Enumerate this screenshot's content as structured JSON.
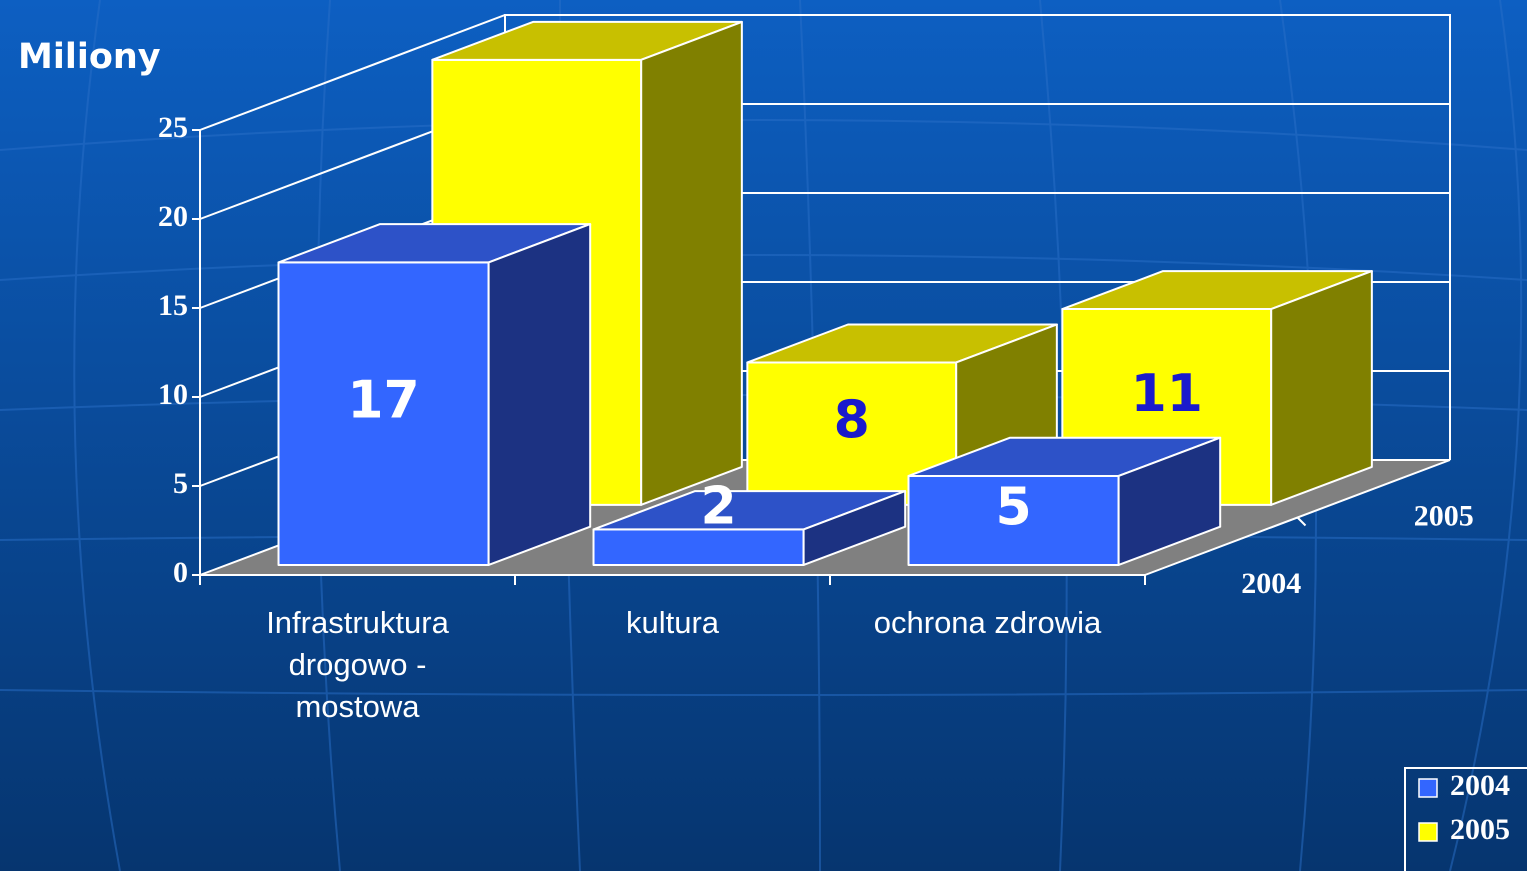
{
  "chart_data": {
    "type": "bar3d",
    "ylabel": "Miliony",
    "categories": [
      "Infrastruktura drogowo - mostowa",
      "kultura",
      "ochrona zdrowia"
    ],
    "series": [
      {
        "name": "2004",
        "color": "#3366ff",
        "top_color": "#2d52c8",
        "side_color": "#1c3282",
        "label_color": "#ffffff",
        "values": [
          17,
          2,
          5
        ]
      },
      {
        "name": "2005",
        "color": "#ffff00",
        "top_color": "#c8c000",
        "side_color": "#808000",
        "label_color": "#1a1acc",
        "values": [
          25,
          8,
          11
        ]
      }
    ],
    "ylim": [
      0,
      25
    ],
    "yticks": [
      0,
      5,
      10,
      15,
      20,
      25
    ],
    "grid": true,
    "legend": "lower right"
  }
}
